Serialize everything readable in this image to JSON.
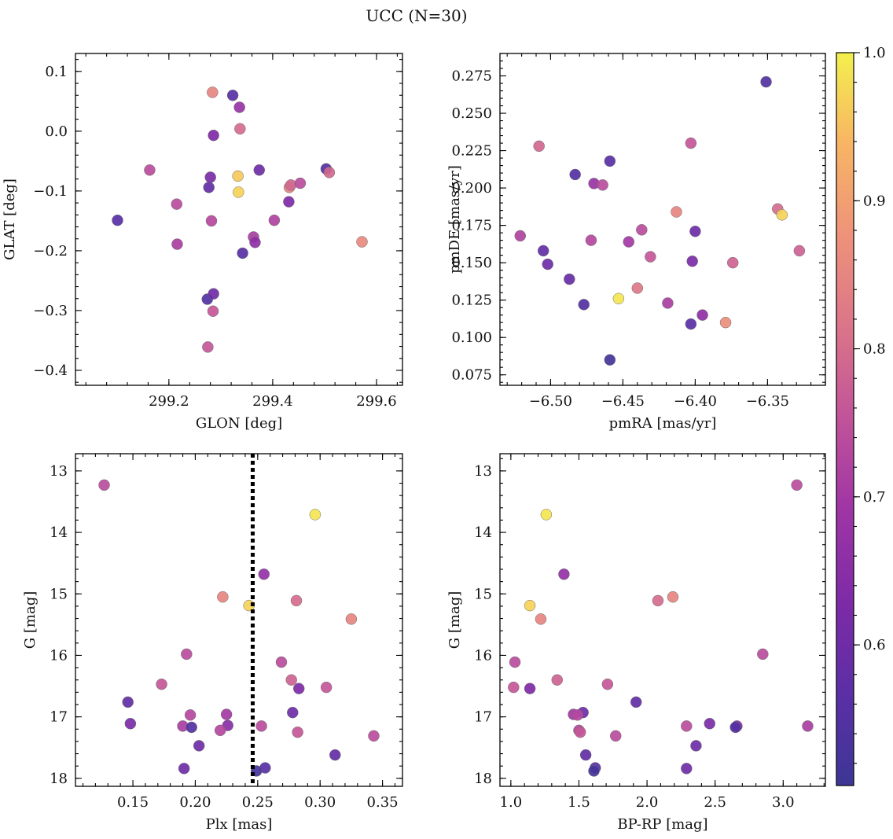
{
  "figure": {
    "title": "UCC (N=30)"
  },
  "colorbar": {
    "colormap": "plasma",
    "range": [
      0.505,
      1.0
    ],
    "ticks": [
      0.6,
      0.7,
      0.8,
      0.9,
      1.0
    ],
    "tick_labels": [
      "0.6",
      "0.7",
      "0.8",
      "0.9",
      "1.0"
    ]
  },
  "chart_data": [
    {
      "type": "scatter",
      "name": "GLON vs GLAT",
      "xlabel": "GLON [deg]",
      "ylabel": "GLAT [deg]",
      "xlim": [
        299.02,
        299.65
      ],
      "ylim": [
        -0.425,
        0.13
      ],
      "xticks": [
        299.2,
        299.4,
        299.6
      ],
      "xtick_labels": [
        "299.2",
        "299.4",
        "299.6"
      ],
      "yticks": [
        0.1,
        0.0,
        -0.1,
        -0.2,
        -0.3,
        -0.4
      ],
      "ytick_labels": [
        "0.1",
        "0.0",
        "−0.1",
        "−0.2",
        "−0.3",
        "−0.4"
      ],
      "invert_y": false,
      "points": [
        {
          "x": 299.284,
          "y": 0.065,
          "c": 0.85
        },
        {
          "x": 299.323,
          "y": 0.06,
          "c": 0.56
        },
        {
          "x": 299.336,
          "y": 0.04,
          "c": 0.68
        },
        {
          "x": 299.337,
          "y": 0.004,
          "c": 0.8
        },
        {
          "x": 299.286,
          "y": -0.007,
          "c": 0.63
        },
        {
          "x": 299.163,
          "y": -0.065,
          "c": 0.74
        },
        {
          "x": 299.333,
          "y": -0.075,
          "c": 0.96
        },
        {
          "x": 299.374,
          "y": -0.065,
          "c": 0.6
        },
        {
          "x": 299.28,
          "y": -0.077,
          "c": 0.62
        },
        {
          "x": 299.503,
          "y": -0.063,
          "c": 0.55
        },
        {
          "x": 299.509,
          "y": -0.069,
          "c": 0.79
        },
        {
          "x": 299.277,
          "y": -0.094,
          "c": 0.58
        },
        {
          "x": 299.432,
          "y": -0.094,
          "c": 0.84
        },
        {
          "x": 299.435,
          "y": -0.09,
          "c": 0.79
        },
        {
          "x": 299.453,
          "y": -0.087,
          "c": 0.74
        },
        {
          "x": 299.334,
          "y": -0.102,
          "c": 0.97
        },
        {
          "x": 299.215,
          "y": -0.122,
          "c": 0.74
        },
        {
          "x": 299.431,
          "y": -0.118,
          "c": 0.63
        },
        {
          "x": 299.101,
          "y": -0.149,
          "c": 0.56
        },
        {
          "x": 299.282,
          "y": -0.15,
          "c": 0.73
        },
        {
          "x": 299.403,
          "y": -0.149,
          "c": 0.72
        },
        {
          "x": 299.572,
          "y": -0.185,
          "c": 0.86
        },
        {
          "x": 299.216,
          "y": -0.189,
          "c": 0.71
        },
        {
          "x": 299.363,
          "y": -0.177,
          "c": 0.71
        },
        {
          "x": 299.366,
          "y": -0.186,
          "c": 0.66
        },
        {
          "x": 299.342,
          "y": -0.204,
          "c": 0.56
        },
        {
          "x": 299.274,
          "y": -0.281,
          "c": 0.55
        },
        {
          "x": 299.286,
          "y": -0.272,
          "c": 0.6
        },
        {
          "x": 299.285,
          "y": -0.301,
          "c": 0.76
        },
        {
          "x": 299.275,
          "y": -0.361,
          "c": 0.76
        }
      ]
    },
    {
      "type": "scatter",
      "name": "pmRA vs pmDE",
      "xlabel": "pmRA [mas/yr]",
      "ylabel": "pmDE [mas/yr]",
      "xlim": [
        -6.535,
        -6.31
      ],
      "ylim": [
        0.068,
        0.29
      ],
      "xticks": [
        -6.5,
        -6.45,
        -6.4,
        -6.35
      ],
      "xtick_labels": [
        "−6.50",
        "−6.45",
        "−6.40",
        "−6.35"
      ],
      "yticks": [
        0.075,
        0.1,
        0.125,
        0.15,
        0.175,
        0.2,
        0.225,
        0.25,
        0.275
      ],
      "ytick_labels": [
        "0.075",
        "0.100",
        "0.125",
        "0.150",
        "0.175",
        "0.200",
        "0.225",
        "0.250",
        "0.275"
      ],
      "invert_y": false,
      "points": [
        {
          "x": -6.351,
          "y": 0.271,
          "c": 0.55
        },
        {
          "x": -6.508,
          "y": 0.228,
          "c": 0.79
        },
        {
          "x": -6.403,
          "y": 0.23,
          "c": 0.76
        },
        {
          "x": -6.459,
          "y": 0.218,
          "c": 0.56
        },
        {
          "x": -6.483,
          "y": 0.209,
          "c": 0.55
        },
        {
          "x": -6.47,
          "y": 0.203,
          "c": 0.68
        },
        {
          "x": -6.464,
          "y": 0.202,
          "c": 0.74
        },
        {
          "x": -6.413,
          "y": 0.184,
          "c": 0.85
        },
        {
          "x": -6.343,
          "y": 0.186,
          "c": 0.8
        },
        {
          "x": -6.34,
          "y": 0.182,
          "c": 0.97
        },
        {
          "x": -6.521,
          "y": 0.168,
          "c": 0.72
        },
        {
          "x": -6.437,
          "y": 0.172,
          "c": 0.74
        },
        {
          "x": -6.4,
          "y": 0.171,
          "c": 0.6
        },
        {
          "x": -6.472,
          "y": 0.165,
          "c": 0.73
        },
        {
          "x": -6.446,
          "y": 0.164,
          "c": 0.7
        },
        {
          "x": -6.505,
          "y": 0.158,
          "c": 0.58
        },
        {
          "x": -6.328,
          "y": 0.158,
          "c": 0.78
        },
        {
          "x": -6.431,
          "y": 0.154,
          "c": 0.76
        },
        {
          "x": -6.402,
          "y": 0.151,
          "c": 0.62
        },
        {
          "x": -6.374,
          "y": 0.15,
          "c": 0.78
        },
        {
          "x": -6.502,
          "y": 0.149,
          "c": 0.6
        },
        {
          "x": -6.487,
          "y": 0.139,
          "c": 0.59
        },
        {
          "x": -6.44,
          "y": 0.133,
          "c": 0.82
        },
        {
          "x": -6.453,
          "y": 0.126,
          "c": 0.99
        },
        {
          "x": -6.419,
          "y": 0.123,
          "c": 0.71
        },
        {
          "x": -6.477,
          "y": 0.122,
          "c": 0.55
        },
        {
          "x": -6.395,
          "y": 0.115,
          "c": 0.66
        },
        {
          "x": -6.379,
          "y": 0.11,
          "c": 0.87
        },
        {
          "x": -6.403,
          "y": 0.109,
          "c": 0.56
        },
        {
          "x": -6.459,
          "y": 0.085,
          "c": 0.52
        }
      ]
    },
    {
      "type": "scatter",
      "name": "Plx vs G",
      "xlabel": "Plx [mas]",
      "ylabel": "G [mag]",
      "xlim": [
        0.104,
        0.366
      ],
      "ylim": [
        18.13,
        12.72
      ],
      "xticks": [
        0.15,
        0.2,
        0.25,
        0.3,
        0.35
      ],
      "xtick_labels": [
        "0.15",
        "0.20",
        "0.25",
        "0.30",
        "0.35"
      ],
      "yticks": [
        13,
        14,
        15,
        16,
        17,
        18
      ],
      "ytick_labels": [
        "13",
        "14",
        "15",
        "16",
        "17",
        "18"
      ],
      "invert_y": true,
      "vline": {
        "x": 0.246,
        "style": "dotted",
        "color": "#000000"
      },
      "points": [
        {
          "x": 0.127,
          "y": 13.23,
          "c": 0.74
        },
        {
          "x": 0.296,
          "y": 13.71,
          "c": 0.99
        },
        {
          "x": 0.255,
          "y": 14.68,
          "c": 0.67
        },
        {
          "x": 0.222,
          "y": 15.05,
          "c": 0.85
        },
        {
          "x": 0.281,
          "y": 15.11,
          "c": 0.8
        },
        {
          "x": 0.243,
          "y": 15.19,
          "c": 0.97
        },
        {
          "x": 0.325,
          "y": 15.41,
          "c": 0.85
        },
        {
          "x": 0.193,
          "y": 15.98,
          "c": 0.74
        },
        {
          "x": 0.269,
          "y": 16.11,
          "c": 0.74
        },
        {
          "x": 0.173,
          "y": 16.47,
          "c": 0.76
        },
        {
          "x": 0.277,
          "y": 16.4,
          "c": 0.78
        },
        {
          "x": 0.305,
          "y": 16.52,
          "c": 0.76
        },
        {
          "x": 0.283,
          "y": 16.54,
          "c": 0.63
        },
        {
          "x": 0.146,
          "y": 16.76,
          "c": 0.58
        },
        {
          "x": 0.196,
          "y": 16.97,
          "c": 0.73
        },
        {
          "x": 0.225,
          "y": 16.96,
          "c": 0.7
        },
        {
          "x": 0.278,
          "y": 16.93,
          "c": 0.6
        },
        {
          "x": 0.148,
          "y": 17.11,
          "c": 0.62
        },
        {
          "x": 0.19,
          "y": 17.15,
          "c": 0.71
        },
        {
          "x": 0.197,
          "y": 17.17,
          "c": 0.55
        },
        {
          "x": 0.226,
          "y": 17.14,
          "c": 0.65
        },
        {
          "x": 0.22,
          "y": 17.22,
          "c": 0.73
        },
        {
          "x": 0.253,
          "y": 17.15,
          "c": 0.74
        },
        {
          "x": 0.282,
          "y": 17.25,
          "c": 0.76
        },
        {
          "x": 0.343,
          "y": 17.31,
          "c": 0.74
        },
        {
          "x": 0.203,
          "y": 17.47,
          "c": 0.6
        },
        {
          "x": 0.312,
          "y": 17.62,
          "c": 0.58
        },
        {
          "x": 0.191,
          "y": 17.84,
          "c": 0.6
        },
        {
          "x": 0.256,
          "y": 17.83,
          "c": 0.56
        },
        {
          "x": 0.249,
          "y": 17.88,
          "c": 0.52
        }
      ]
    },
    {
      "type": "scatter",
      "name": "BP-RP vs G",
      "xlabel": "BP-RP [mag]",
      "ylabel": "G [mag]",
      "xlim": [
        0.92,
        3.31
      ],
      "ylim": [
        18.13,
        12.72
      ],
      "xticks": [
        1.0,
        1.5,
        2.0,
        2.5,
        3.0
      ],
      "xtick_labels": [
        "1.0",
        "1.5",
        "2.0",
        "2.5",
        "3.0"
      ],
      "yticks": [
        13,
        14,
        15,
        16,
        17,
        18
      ],
      "ytick_labels": [
        "13",
        "14",
        "15",
        "16",
        "17",
        "18"
      ],
      "invert_y": true,
      "points": [
        {
          "x": 3.1,
          "y": 13.23,
          "c": 0.74
        },
        {
          "x": 1.26,
          "y": 13.71,
          "c": 0.99
        },
        {
          "x": 1.39,
          "y": 14.68,
          "c": 0.67
        },
        {
          "x": 2.19,
          "y": 15.05,
          "c": 0.85
        },
        {
          "x": 2.08,
          "y": 15.11,
          "c": 0.8
        },
        {
          "x": 1.14,
          "y": 15.19,
          "c": 0.97
        },
        {
          "x": 1.22,
          "y": 15.41,
          "c": 0.85
        },
        {
          "x": 2.85,
          "y": 15.98,
          "c": 0.74
        },
        {
          "x": 1.03,
          "y": 16.11,
          "c": 0.74
        },
        {
          "x": 1.34,
          "y": 16.4,
          "c": 0.78
        },
        {
          "x": 1.71,
          "y": 16.47,
          "c": 0.76
        },
        {
          "x": 1.02,
          "y": 16.52,
          "c": 0.76
        },
        {
          "x": 1.14,
          "y": 16.54,
          "c": 0.63
        },
        {
          "x": 1.92,
          "y": 16.76,
          "c": 0.58
        },
        {
          "x": 1.53,
          "y": 16.93,
          "c": 0.6
        },
        {
          "x": 1.46,
          "y": 16.96,
          "c": 0.7
        },
        {
          "x": 1.49,
          "y": 16.97,
          "c": 0.73
        },
        {
          "x": 2.46,
          "y": 17.11,
          "c": 0.62
        },
        {
          "x": 2.66,
          "y": 17.15,
          "c": 0.65
        },
        {
          "x": 2.65,
          "y": 17.17,
          "c": 0.55
        },
        {
          "x": 2.29,
          "y": 17.15,
          "c": 0.74
        },
        {
          "x": 3.18,
          "y": 17.15,
          "c": 0.71
        },
        {
          "x": 1.5,
          "y": 17.22,
          "c": 0.73
        },
        {
          "x": 1.51,
          "y": 17.25,
          "c": 0.76
        },
        {
          "x": 1.77,
          "y": 17.31,
          "c": 0.74
        },
        {
          "x": 2.36,
          "y": 17.47,
          "c": 0.6
        },
        {
          "x": 1.55,
          "y": 17.62,
          "c": 0.58
        },
        {
          "x": 1.62,
          "y": 17.83,
          "c": 0.56
        },
        {
          "x": 2.29,
          "y": 17.84,
          "c": 0.6
        },
        {
          "x": 1.61,
          "y": 17.88,
          "c": 0.52
        }
      ]
    }
  ]
}
